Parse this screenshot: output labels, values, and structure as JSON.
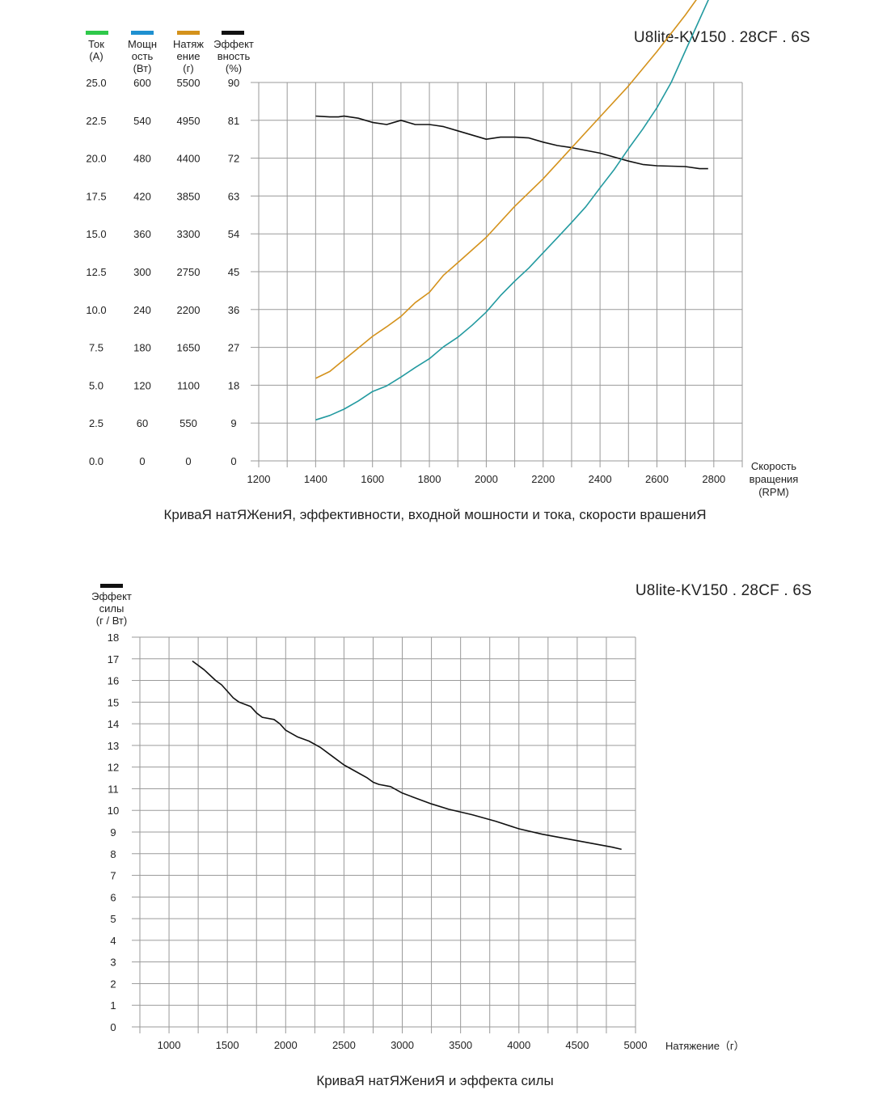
{
  "colors": {
    "current": "#2ec94a",
    "power": "#1f90d0",
    "thrust": "#d4921c",
    "efficiency": "#111111",
    "grid": "#9a9a9a",
    "power_line": "#239aa0"
  },
  "chart_data": [
    {
      "type": "line",
      "model": "U8lite-KV150 . 28CF . 6S",
      "title": "КриваЯ натЯЖениЯ, эффективности, входной мошности и тока, скорости врашениЯ",
      "xlabel": "Скорость\nвращения\n(RPM)",
      "x_ticks": [
        "1200",
        "1400",
        "1600",
        "1800",
        "2000",
        "2200",
        "2400",
        "2600",
        "2800"
      ],
      "xlim": [
        1200,
        2900
      ],
      "legend": [
        {
          "name": "Ток\n(A)",
          "color_key": "current",
          "ticks": [
            "25.0",
            "22.5",
            "20.0",
            "17.5",
            "15.0",
            "12.5",
            "10.0",
            "7.5",
            "5.0",
            "2.5",
            "0.0"
          ]
        },
        {
          "name": "Мощн\nость\n(Вт)",
          "color_key": "power",
          "ticks": [
            "600",
            "540",
            "480",
            "420",
            "360",
            "300",
            "240",
            "180",
            "120",
            "60",
            "0"
          ]
        },
        {
          "name": "Натяж\nение\n(г)",
          "color_key": "thrust",
          "ticks": [
            "5500",
            "4950",
            "4400",
            "3850",
            "3300",
            "2750",
            "2200",
            "1650",
            "1100",
            "550",
            "0"
          ]
        },
        {
          "name": "Эффект\nвность\n(%)",
          "color_key": "efficiency",
          "ticks": [
            "90",
            "81",
            "72",
            "63",
            "54",
            "45",
            "36",
            "27",
            "18",
            "9",
            "0"
          ]
        }
      ],
      "series": [
        {
          "key": "efficiency",
          "ymax": 90,
          "x": [
            1400,
            1450,
            1480,
            1500,
            1550,
            1600,
            1650,
            1700,
            1750,
            1800,
            1820,
            1850,
            1900,
            2000,
            2050,
            2100,
            2150,
            2200,
            2250,
            2300,
            2400,
            2500,
            2550,
            2600,
            2650,
            2700,
            2750,
            2780
          ],
          "y": [
            82,
            81.8,
            81.8,
            82,
            81.5,
            80.5,
            80,
            81,
            80,
            80,
            79.8,
            79.5,
            78.5,
            76.5,
            77,
            77,
            76.8,
            75.8,
            75,
            74.5,
            73.2,
            71.3,
            70.5,
            70.2,
            70.1,
            70,
            69.5,
            69.5
          ]
        },
        {
          "key": "thrust",
          "ymax": 5500,
          "x": [
            1400,
            1450,
            1500,
            1550,
            1600,
            1650,
            1700,
            1750,
            1800,
            1850,
            1900,
            2000,
            2100,
            2200,
            2300,
            2400,
            2500,
            2600,
            2700,
            2790
          ],
          "y": [
            1200,
            1300,
            1470,
            1640,
            1810,
            1950,
            2100,
            2300,
            2450,
            2700,
            2880,
            3250,
            3700,
            4100,
            4550,
            5000,
            5450,
            5950,
            6480,
            7000
          ]
        },
        {
          "key": "power",
          "ymax": 600,
          "x": [
            1400,
            1450,
            1500,
            1550,
            1600,
            1650,
            1700,
            1750,
            1800,
            1850,
            1900,
            1950,
            2000,
            2050,
            2100,
            2150,
            2200,
            2250,
            2300,
            2350,
            2400,
            2450,
            2500,
            2550,
            2600,
            2650,
            2700,
            2750,
            2800
          ],
          "y": [
            65,
            72,
            82,
            95,
            110,
            119,
            133,
            148,
            162,
            181,
            196,
            215,
            236,
            262,
            285,
            306,
            330,
            354,
            378,
            403,
            433,
            462,
            495,
            526,
            560,
            600,
            650,
            700,
            750
          ]
        }
      ]
    },
    {
      "type": "line",
      "model": "U8lite-KV150 . 28CF . 6S",
      "title": "КриваЯ натЯЖениЯ и эффекта силы",
      "ylabel": "Эффект\nсилы\n(г / Вт)",
      "xlabel": "Натяжение（г）",
      "y_ticks": [
        "0",
        "1",
        "2",
        "3",
        "4",
        "5",
        "6",
        "7",
        "8",
        "9",
        "10",
        "11",
        "12",
        "13",
        "14",
        "15",
        "16",
        "17",
        "18"
      ],
      "x_ticks": [
        "1000",
        "1500",
        "2000",
        "2500",
        "3000",
        "3500",
        "4000",
        "4500",
        "5000"
      ],
      "xlim": [
        750,
        5000
      ],
      "ylim": [
        0,
        18
      ],
      "series": [
        {
          "x": [
            1200,
            1300,
            1400,
            1450,
            1500,
            1550,
            1600,
            1700,
            1750,
            1800,
            1900,
            1950,
            2000,
            2100,
            2200,
            2300,
            2400,
            2500,
            2600,
            2700,
            2750,
            2800,
            2900,
            3000,
            3100,
            3250,
            3400,
            3600,
            3800,
            4000,
            4200,
            4500,
            4800,
            4880
          ],
          "y": [
            16.9,
            16.5,
            16.0,
            15.8,
            15.5,
            15.2,
            15.0,
            14.8,
            14.5,
            14.3,
            14.2,
            14.0,
            13.7,
            13.4,
            13.2,
            12.9,
            12.5,
            12.1,
            11.8,
            11.5,
            11.3,
            11.2,
            11.1,
            10.8,
            10.6,
            10.3,
            10.05,
            9.8,
            9.5,
            9.15,
            8.9,
            8.6,
            8.3,
            8.2
          ]
        }
      ]
    }
  ]
}
